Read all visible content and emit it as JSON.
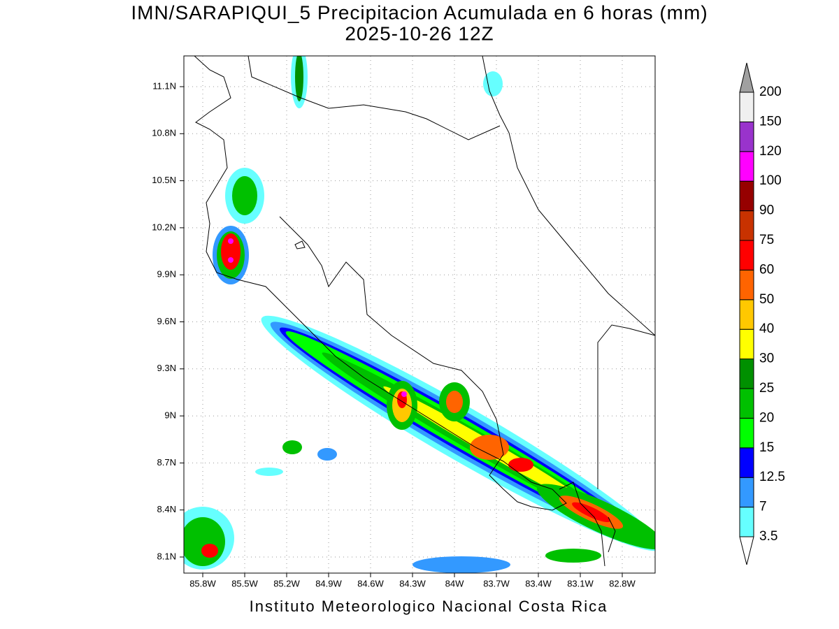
{
  "header": {
    "title": "IMN/SARAPIQUI_5 Precipitacion Acumulada en 6 horas (mm)",
    "subtitle": "2025-10-26 12Z"
  },
  "map": {
    "x_ticks": [
      "85.8W",
      "85.5W",
      "85.2W",
      "84.9W",
      "84.6W",
      "84.3W",
      "84W",
      "83.7W",
      "83.4W",
      "83.1W",
      "82.8W"
    ],
    "y_ticks": [
      "11.1N",
      "10.8N",
      "10.5N",
      "10.2N",
      "9.9N",
      "9.6N",
      "9.3N",
      "9N",
      "8.7N",
      "8.4N",
      "8.1N"
    ]
  },
  "colorbar": {
    "levels": [
      3.5,
      7,
      12.5,
      15,
      20,
      25,
      30,
      40,
      50,
      60,
      75,
      90,
      100,
      120,
      150,
      200
    ],
    "colors": [
      "#ffffff",
      "#66ffff",
      "#3399ff",
      "#0000ff",
      "#00ff00",
      "#00c000",
      "#009000",
      "#ffff00",
      "#ffc800",
      "#ff6400",
      "#ff0000",
      "#c83200",
      "#960000",
      "#ff00ff",
      "#9933cc",
      "#f0f0f0",
      "#a0a0a0"
    ]
  },
  "footer": "Instituto Meteorologico Nacional Costa Rica"
}
